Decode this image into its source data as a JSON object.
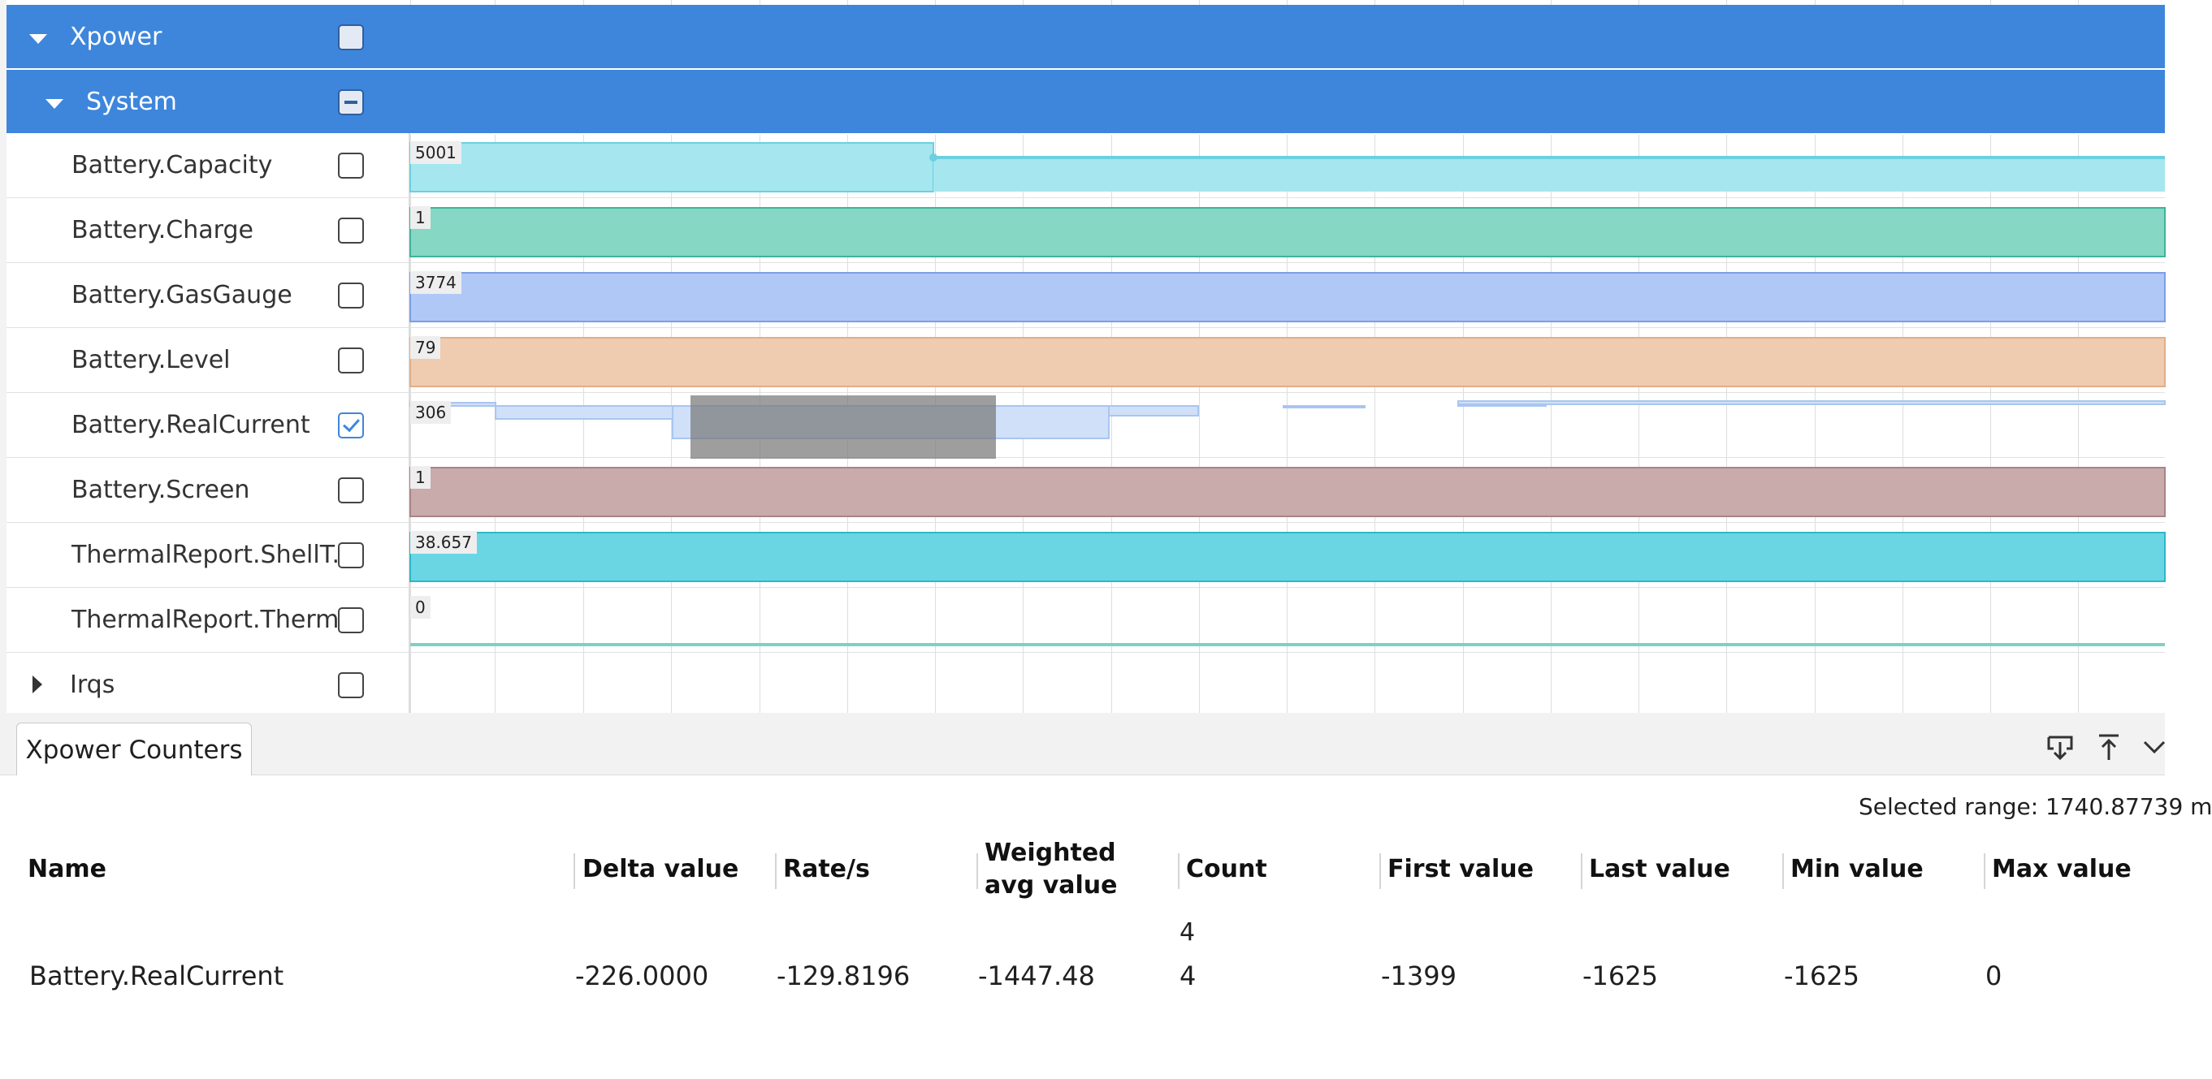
{
  "tracks": {
    "xpower": {
      "label": "Xpower"
    },
    "system": {
      "label": "System"
    },
    "counters": [
      {
        "label": "Battery.Capacity",
        "value_tag": "5001"
      },
      {
        "label": "Battery.Charge",
        "value_tag": "1"
      },
      {
        "label": "Battery.GasGauge",
        "value_tag": "3774"
      },
      {
        "label": "Battery.Level",
        "value_tag": "79"
      },
      {
        "label": "Battery.RealCurrent",
        "value_tag": "306"
      },
      {
        "label": "Battery.Screen",
        "value_tag": "1"
      },
      {
        "label": "ThermalReport.ShellT...",
        "value_tag": "38.657"
      },
      {
        "label": "ThermalReport.Therm...",
        "value_tag": "0"
      }
    ],
    "irqs": {
      "label": "Irqs"
    }
  },
  "colors": {
    "group_header": "#3e86dc",
    "capacity": "#a6e6ef",
    "charge": "#86d7c4",
    "gasgauge": "#b0c8f6",
    "level": "#efcbb0",
    "realcurrent": "#cfe0f8",
    "screen": "#c9abab",
    "thermal_shell": "#6ad6e4",
    "thermal_other": "#7fd0c4"
  },
  "panel": {
    "tab_label": "Xpower Counters",
    "selected_range": "Selected range: 1740.87739 m",
    "columns": [
      "Name",
      "Delta value",
      "Rate/s",
      "Weighted avg value",
      "Count",
      "First value",
      "Last value",
      "Min value",
      "Max value"
    ],
    "count_header_extra": "4",
    "row": {
      "name": "Battery.RealCurrent",
      "delta": "-226.0000",
      "rate": "-129.8196",
      "weighted_avg": "-1447.48",
      "count": "4",
      "first": "-1399",
      "last": "-1625",
      "min": "-1625",
      "max": "0"
    }
  }
}
